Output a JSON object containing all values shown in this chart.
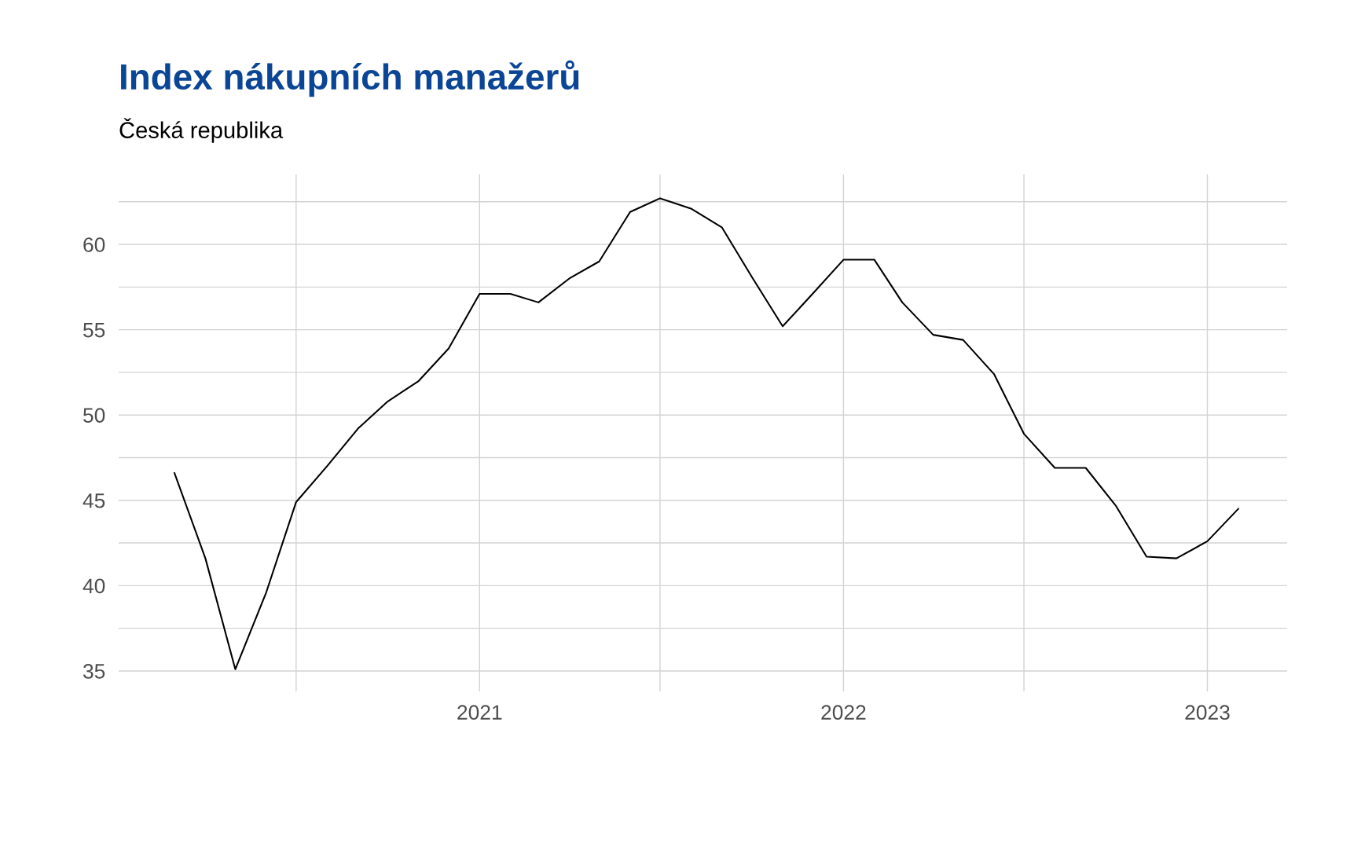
{
  "chart_data": {
    "type": "line",
    "title": "Index nákupních manažerů",
    "subtitle": "Česká republika",
    "x": [
      "2020-03",
      "2020-04",
      "2020-05",
      "2020-06",
      "2020-07",
      "2020-08",
      "2020-09",
      "2020-10",
      "2020-11",
      "2020-12",
      "2021-01",
      "2021-02",
      "2021-03",
      "2021-04",
      "2021-05",
      "2021-06",
      "2021-07",
      "2021-08",
      "2021-09",
      "2021-10",
      "2021-11",
      "2021-12",
      "2022-01",
      "2022-02",
      "2022-03",
      "2022-04",
      "2022-05",
      "2022-06",
      "2022-07",
      "2022-08",
      "2022-09",
      "2022-10",
      "2022-11",
      "2022-12",
      "2023-01",
      "2023-02"
    ],
    "series": [
      {
        "color": "#000000",
        "values": [
          46.6,
          41.6,
          35.1,
          39.6,
          44.9,
          47.0,
          49.2,
          50.8,
          52.0,
          53.9,
          57.1,
          57.1,
          56.6,
          58.0,
          59.0,
          61.9,
          62.7,
          62.1,
          61.0,
          58.1,
          55.2,
          57.1,
          59.1,
          59.1,
          56.6,
          54.7,
          54.4,
          52.4,
          48.9,
          46.9,
          46.9,
          44.7,
          41.7,
          41.6,
          42.6,
          44.5
        ]
      }
    ],
    "xlim": [
      "2020-01-05",
      "2023-03-22"
    ],
    "xticks": [
      {
        "value": "2020-07",
        "label": null
      },
      {
        "value": "2021",
        "label": "2021"
      },
      {
        "value": "2021-07",
        "label": null
      },
      {
        "value": "2022",
        "label": "2022"
      },
      {
        "value": "2022-07",
        "label": null
      },
      {
        "value": "2023",
        "label": "2023"
      }
    ],
    "ylim": [
      33.8,
      64.1
    ],
    "yticks": [
      35,
      {
        "value": 37.5,
        "label": null
      },
      40,
      {
        "value": 42.5,
        "label": null
      },
      45,
      {
        "value": 47.5,
        "label": null
      },
      50,
      {
        "value": 52.5,
        "label": null
      },
      55,
      {
        "value": 57.5,
        "label": null
      },
      60,
      {
        "value": 62.5,
        "label": null
      }
    ],
    "grid": true,
    "marker": "none",
    "line_style": "solid"
  }
}
